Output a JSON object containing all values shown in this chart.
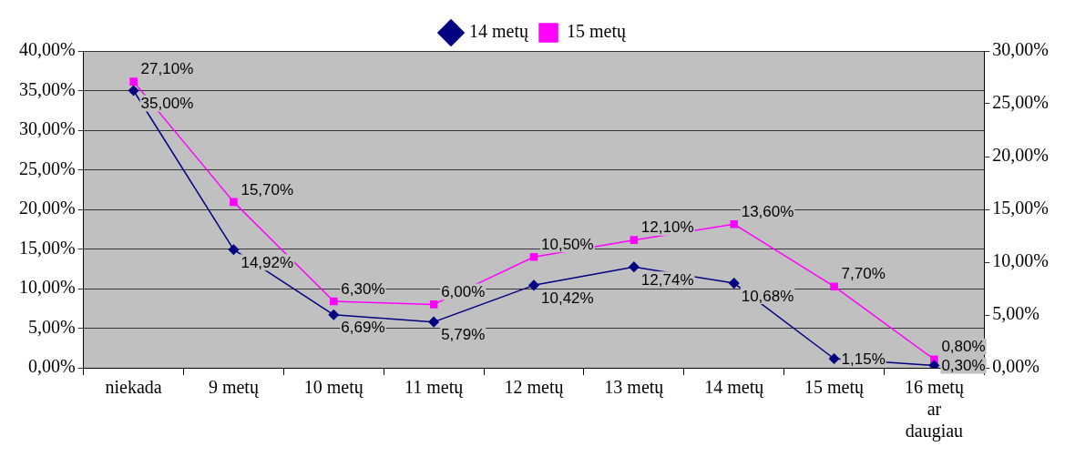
{
  "chart_data": {
    "type": "line",
    "categories": [
      "niekada",
      "9 metų",
      "10 metų",
      "11 metų",
      "12 metų",
      "13 metų",
      "14 metų",
      "15 metų",
      "16 metų ar daugiau"
    ],
    "series": [
      {
        "name": "14 metų",
        "color": "#000080",
        "marker": "diamond",
        "values": [
          35.0,
          14.92,
          6.69,
          5.79,
          10.42,
          12.74,
          10.68,
          1.15,
          0.3
        ],
        "value_labels": [
          "35,00%",
          "14,92%",
          "6,69%",
          "5,79%",
          "10,42%",
          "12,74%",
          "10,68%",
          "1,15%",
          "0,30%"
        ]
      },
      {
        "name": "15 metų",
        "color": "#ff00ff",
        "marker": "square",
        "axis": "y2",
        "values": [
          27.1,
          15.7,
          6.3,
          6.0,
          10.5,
          12.1,
          13.6,
          7.7,
          0.8
        ],
        "value_labels": [
          "27,10%",
          "15,70%",
          "6,30%",
          "6,00%",
          "10,50%",
          "12,10%",
          "13,60%",
          "7,70%",
          "0,80%"
        ]
      }
    ],
    "ylim": [
      0,
      40
    ],
    "yticks": [
      {
        "value": 0,
        "label": "0,00%"
      },
      {
        "value": 5,
        "label": "5,00%"
      },
      {
        "value": 10,
        "label": "10,00%"
      },
      {
        "value": 15,
        "label": "15,00%"
      },
      {
        "value": 20,
        "label": "20,00%"
      },
      {
        "value": 25,
        "label": "25,00%"
      },
      {
        "value": 30,
        "label": "30,00%"
      },
      {
        "value": 35,
        "label": "35,00%"
      },
      {
        "value": 40,
        "label": "40,00%"
      }
    ],
    "y2lim": [
      0,
      30
    ],
    "y2ticks": [
      {
        "value": 0,
        "label": "0,00%"
      },
      {
        "value": 5,
        "label": "5,00%"
      },
      {
        "value": 10,
        "label": "10,00%"
      },
      {
        "value": 15,
        "label": "15,00%"
      },
      {
        "value": 20,
        "label": "20,00%"
      },
      {
        "value": 25,
        "label": "25,00%"
      },
      {
        "value": 30,
        "label": "30,00%"
      }
    ],
    "grid": "y",
    "legend": "top",
    "line_style": "solid"
  }
}
